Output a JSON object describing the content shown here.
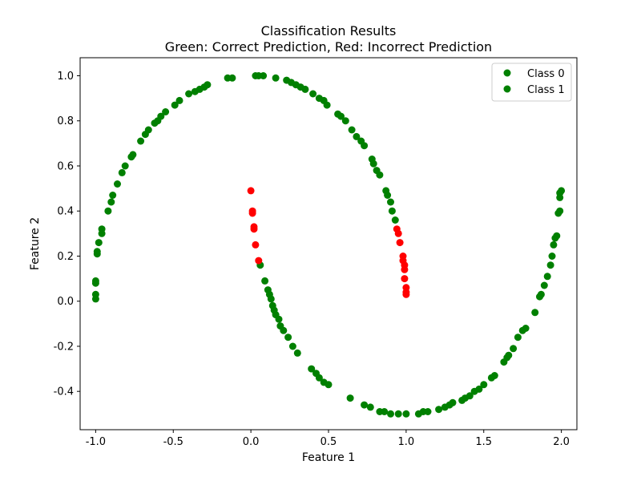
{
  "chart_data": {
    "type": "scatter",
    "title": "Classification Results",
    "subtitle": "Green: Correct Prediction, Red: Incorrect Prediction",
    "xlabel": "Feature 1",
    "ylabel": "Feature 2",
    "xlim": [
      -1.1,
      2.1
    ],
    "ylim": [
      -0.57,
      1.08
    ],
    "xticks": [
      -1.0,
      -0.5,
      0.0,
      0.5,
      1.0,
      1.5,
      2.0
    ],
    "yticks": [
      -0.4,
      -0.2,
      0.0,
      0.2,
      0.4,
      0.6,
      0.8,
      1.0
    ],
    "grid": false,
    "legend_position": "top-right",
    "colors": {
      "correct": "#008000",
      "incorrect": "#ff0000"
    },
    "legend": [
      {
        "name": "Class 0",
        "color": "#008000"
      },
      {
        "name": "Class 1",
        "color": "#008000"
      }
    ],
    "series": [
      {
        "name": "Class 0",
        "points": [
          [
            -1.0,
            0.01
          ],
          [
            -1.0,
            0.03
          ],
          [
            -1.0,
            0.08
          ],
          [
            -1.0,
            0.09
          ],
          [
            -0.99,
            0.21
          ],
          [
            -0.99,
            0.22
          ],
          [
            -0.98,
            0.26
          ],
          [
            -0.96,
            0.3
          ],
          [
            -0.96,
            0.32
          ],
          [
            -0.92,
            0.4
          ],
          [
            -0.9,
            0.44
          ],
          [
            -0.89,
            0.47
          ],
          [
            -0.86,
            0.52
          ],
          [
            -0.83,
            0.57
          ],
          [
            -0.81,
            0.6
          ],
          [
            -0.77,
            0.64
          ],
          [
            -0.76,
            0.65
          ],
          [
            -0.71,
            0.71
          ],
          [
            -0.68,
            0.74
          ],
          [
            -0.66,
            0.76
          ],
          [
            -0.62,
            0.79
          ],
          [
            -0.6,
            0.8
          ],
          [
            -0.58,
            0.82
          ],
          [
            -0.55,
            0.84
          ],
          [
            -0.49,
            0.87
          ],
          [
            -0.46,
            0.89
          ],
          [
            -0.4,
            0.92
          ],
          [
            -0.36,
            0.93
          ],
          [
            -0.33,
            0.94
          ],
          [
            -0.3,
            0.95
          ],
          [
            -0.28,
            0.96
          ],
          [
            -0.15,
            0.99
          ],
          [
            -0.12,
            0.99
          ],
          [
            0.03,
            1.0
          ],
          [
            0.05,
            1.0
          ],
          [
            0.08,
            1.0
          ],
          [
            0.16,
            0.99
          ],
          [
            0.23,
            0.98
          ],
          [
            0.26,
            0.97
          ],
          [
            0.29,
            0.96
          ],
          [
            0.32,
            0.95
          ],
          [
            0.35,
            0.94
          ],
          [
            0.4,
            0.92
          ],
          [
            0.44,
            0.9
          ],
          [
            0.47,
            0.89
          ],
          [
            0.49,
            0.87
          ],
          [
            0.56,
            0.83
          ],
          [
            0.58,
            0.82
          ],
          [
            0.61,
            0.8
          ],
          [
            0.65,
            0.76
          ],
          [
            0.68,
            0.73
          ],
          [
            0.71,
            0.71
          ],
          [
            0.73,
            0.69
          ],
          [
            0.78,
            0.63
          ],
          [
            0.79,
            0.61
          ],
          [
            0.81,
            0.58
          ],
          [
            0.83,
            0.56
          ],
          [
            0.87,
            0.49
          ],
          [
            0.88,
            0.47
          ],
          [
            0.9,
            0.44
          ],
          [
            0.91,
            0.4
          ],
          [
            0.93,
            0.36
          ]
        ],
        "misclassified": [
          [
            0.94,
            0.32
          ],
          [
            0.95,
            0.3
          ],
          [
            0.96,
            0.26
          ],
          [
            0.98,
            0.2
          ],
          [
            0.98,
            0.18
          ],
          [
            0.99,
            0.16
          ],
          [
            0.99,
            0.14
          ],
          [
            0.99,
            0.1
          ],
          [
            1.0,
            0.06
          ],
          [
            1.0,
            0.04
          ],
          [
            1.0,
            0.03
          ]
        ]
      },
      {
        "name": "Class 1",
        "points": [
          [
            0.06,
            0.16
          ],
          [
            0.09,
            0.09
          ],
          [
            0.11,
            0.05
          ],
          [
            0.12,
            0.03
          ],
          [
            0.13,
            0.01
          ],
          [
            0.14,
            -0.02
          ],
          [
            0.15,
            -0.04
          ],
          [
            0.16,
            -0.06
          ],
          [
            0.18,
            -0.08
          ],
          [
            0.19,
            -0.11
          ],
          [
            0.21,
            -0.13
          ],
          [
            0.24,
            -0.16
          ],
          [
            0.27,
            -0.2
          ],
          [
            0.3,
            -0.23
          ],
          [
            0.39,
            -0.3
          ],
          [
            0.42,
            -0.32
          ],
          [
            0.44,
            -0.34
          ],
          [
            0.47,
            -0.36
          ],
          [
            0.5,
            -0.37
          ],
          [
            0.64,
            -0.43
          ],
          [
            0.73,
            -0.46
          ],
          [
            0.77,
            -0.47
          ],
          [
            0.83,
            -0.49
          ],
          [
            0.86,
            -0.49
          ],
          [
            0.9,
            -0.5
          ],
          [
            0.95,
            -0.5
          ],
          [
            1.0,
            -0.5
          ],
          [
            1.08,
            -0.5
          ],
          [
            1.11,
            -0.49
          ],
          [
            1.14,
            -0.49
          ],
          [
            1.21,
            -0.48
          ],
          [
            1.25,
            -0.47
          ],
          [
            1.28,
            -0.46
          ],
          [
            1.3,
            -0.45
          ],
          [
            1.36,
            -0.44
          ],
          [
            1.38,
            -0.43
          ],
          [
            1.41,
            -0.42
          ],
          [
            1.44,
            -0.4
          ],
          [
            1.47,
            -0.39
          ],
          [
            1.5,
            -0.37
          ],
          [
            1.55,
            -0.34
          ],
          [
            1.57,
            -0.33
          ],
          [
            1.63,
            -0.27
          ],
          [
            1.65,
            -0.25
          ],
          [
            1.66,
            -0.24
          ],
          [
            1.69,
            -0.21
          ],
          [
            1.72,
            -0.16
          ],
          [
            1.75,
            -0.13
          ],
          [
            1.77,
            -0.12
          ],
          [
            1.83,
            -0.05
          ],
          [
            1.86,
            0.02
          ],
          [
            1.87,
            0.03
          ],
          [
            1.89,
            0.07
          ],
          [
            1.91,
            0.11
          ],
          [
            1.93,
            0.16
          ],
          [
            1.94,
            0.2
          ],
          [
            1.95,
            0.25
          ],
          [
            1.96,
            0.28
          ],
          [
            1.97,
            0.29
          ],
          [
            1.98,
            0.39
          ],
          [
            1.99,
            0.4
          ],
          [
            1.99,
            0.46
          ],
          [
            1.99,
            0.48
          ],
          [
            2.0,
            0.49
          ]
        ],
        "misclassified": [
          [
            0.0,
            0.49
          ],
          [
            0.01,
            0.39
          ],
          [
            0.01,
            0.4
          ],
          [
            0.02,
            0.33
          ],
          [
            0.02,
            0.32
          ],
          [
            0.03,
            0.25
          ],
          [
            0.05,
            0.18
          ]
        ]
      }
    ]
  }
}
